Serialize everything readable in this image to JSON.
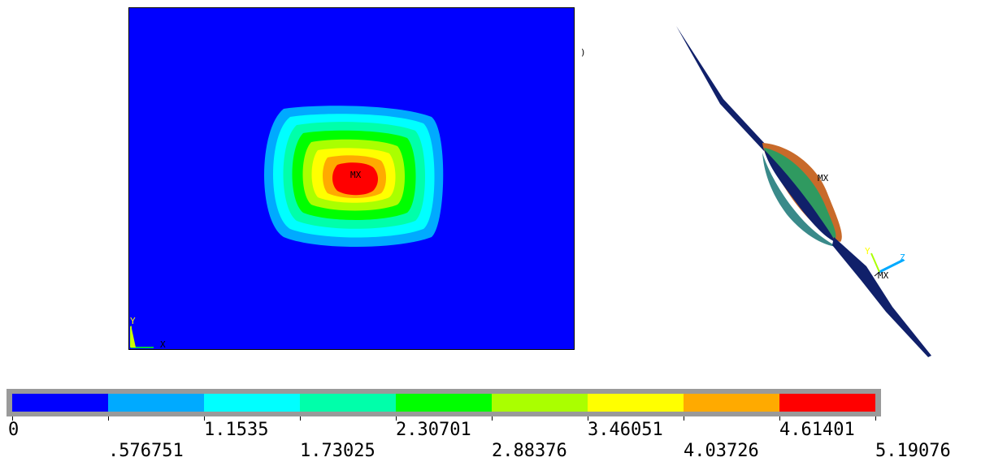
{
  "contour_plot": {
    "max_marker": "MX",
    "triad_y": "Y",
    "triad_x": "X",
    "colors": [
      "#0000ff",
      "#00aaff",
      "#00ffff",
      "#00ffaa",
      "#00ff00",
      "#aaff00",
      "#ffff00",
      "#ffaa00",
      "#ff0000"
    ]
  },
  "side_mark": ")",
  "deformed_view": {
    "max_marker": "MX",
    "min_marker": "MX",
    "triad_y": "Y",
    "triad_z": "Z"
  },
  "legend": {
    "colors": [
      "#0000ff",
      "#00aaff",
      "#00ffff",
      "#00ffaa",
      "#00ff00",
      "#aaff00",
      "#ffff00",
      "#ffaa00",
      "#ff0000"
    ],
    "values": [
      "0",
      ".576751",
      "1.1535",
      "1.73025",
      "2.30701",
      "2.88376",
      "3.46051",
      "4.03726",
      "4.61401",
      "5.19076"
    ]
  }
}
